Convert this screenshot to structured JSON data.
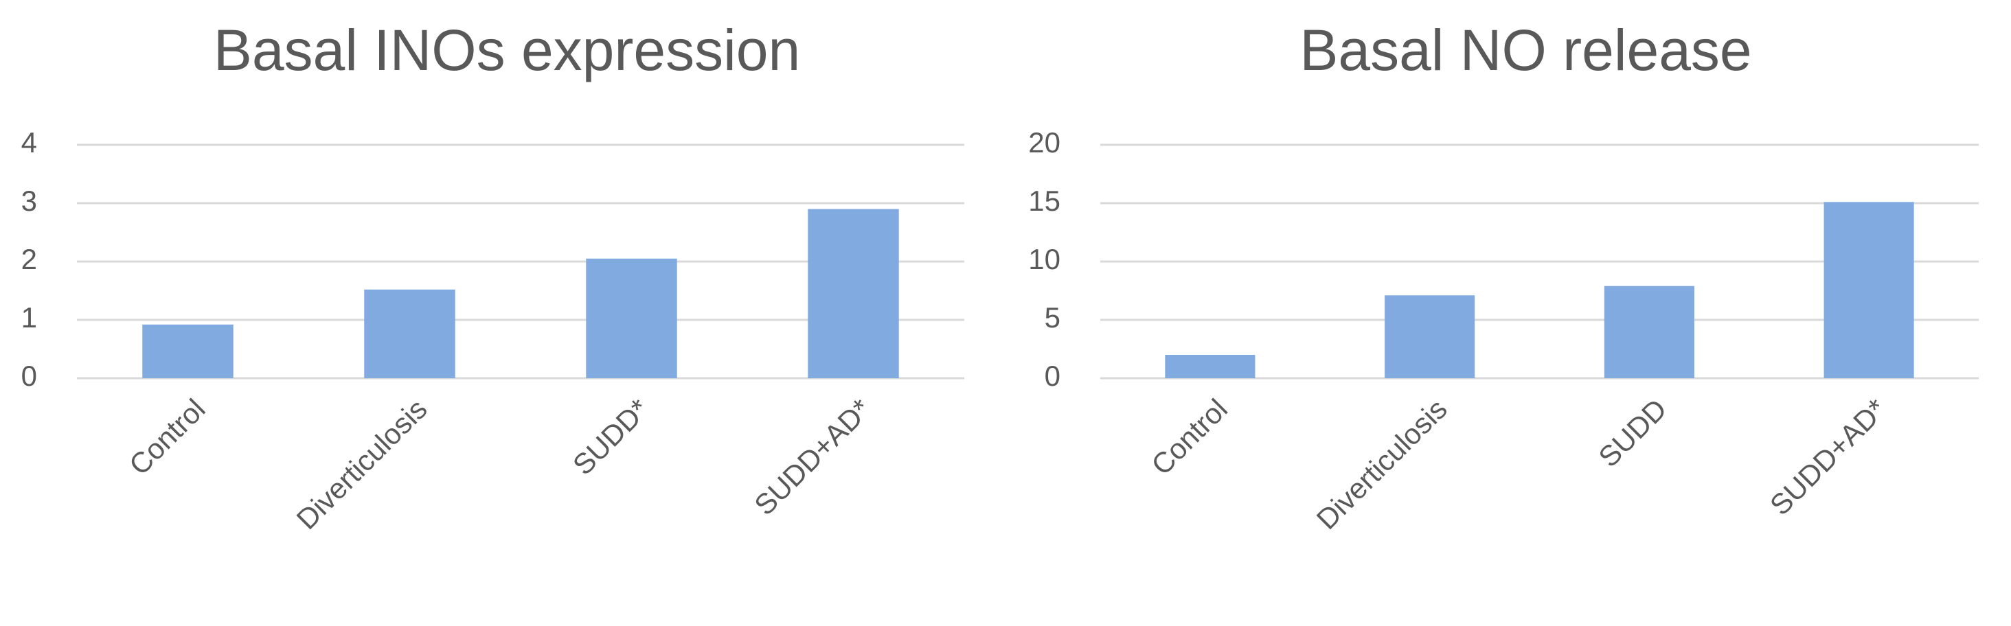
{
  "chart_data": [
    {
      "type": "bar",
      "title": "Basal INOs expression",
      "categories": [
        "Control",
        "Diverticulosis",
        "SUDD*",
        "SUDD+AD*"
      ],
      "values": [
        0.92,
        1.52,
        2.05,
        2.9
      ],
      "color": "#80aae0",
      "ylim": [
        0,
        4
      ],
      "yticks": [
        0,
        1,
        2,
        3,
        4
      ],
      "grid": true
    },
    {
      "type": "bar",
      "title": "Basal NO release",
      "categories": [
        "Control",
        "Diverticulosis",
        "SUDD",
        "SUDD+AD*"
      ],
      "values": [
        2,
        7.1,
        7.9,
        15.1
      ],
      "color": "#80aae0",
      "ylim": [
        0,
        20
      ],
      "yticks": [
        0,
        5,
        10,
        15,
        20
      ],
      "grid": true
    }
  ]
}
